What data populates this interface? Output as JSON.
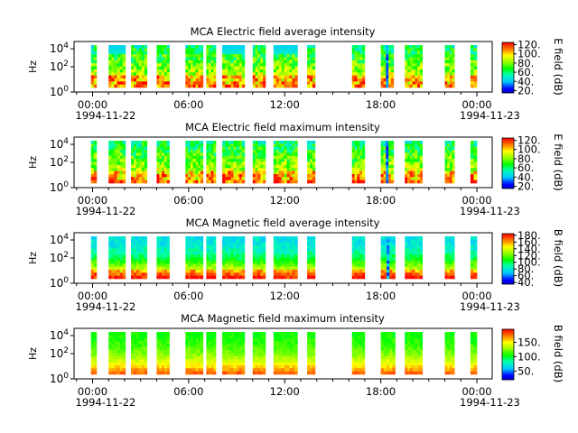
{
  "chart_data": [
    {
      "type": "heatmap",
      "title": "MCA  Electric field average intensity",
      "ylabel": "Hz",
      "yticks": [
        "10^0",
        "10^2",
        "10^4"
      ],
      "xticks": [
        "00:00",
        "06:00",
        "12:00",
        "18:00",
        "00:00"
      ],
      "date_start": "1994-11-22",
      "date_end": "1994-11-23",
      "colorbar_label": "E field (dB)",
      "colorbar_ticks": [
        "20.",
        "40.",
        "60.",
        "80.",
        "100.",
        "120."
      ],
      "colorbar_range": [
        15,
        125
      ],
      "style": "electric"
    },
    {
      "type": "heatmap",
      "title": "MCA  Electric field maximum intensity",
      "ylabel": "Hz",
      "yticks": [
        "10^0",
        "10^2",
        "10^4"
      ],
      "xticks": [
        "00:00",
        "06:00",
        "12:00",
        "18:00",
        "00:00"
      ],
      "date_start": "1994-11-22",
      "date_end": "1994-11-23",
      "colorbar_label": "E field (dB)",
      "colorbar_ticks": [
        "20.",
        "40.",
        "60.",
        "80.",
        "100.",
        "120."
      ],
      "colorbar_range": [
        15,
        125
      ],
      "style": "electric"
    },
    {
      "type": "heatmap",
      "title": "MCA  Magnetic field average intensity",
      "ylabel": "Hz",
      "yticks": [
        "10^0",
        "10^2",
        "10^4"
      ],
      "xticks": [
        "00:00",
        "06:00",
        "12:00",
        "18:00",
        "00:00"
      ],
      "date_start": "1994-11-22",
      "date_end": "1994-11-23",
      "colorbar_label": "B field (dB)",
      "colorbar_ticks": [
        "40.",
        "60.",
        "80.",
        "100.",
        "120.",
        "140.",
        "160.",
        "180."
      ],
      "colorbar_range": [
        35,
        185
      ],
      "style": "magnetic"
    },
    {
      "type": "heatmap",
      "title": "MCA  Magnetic field maximum intensity",
      "ylabel": "Hz",
      "yticks": [
        "10^0",
        "10^2",
        "10^4"
      ],
      "xticks": [
        "00:00",
        "06:00",
        "12:00",
        "18:00",
        "00:00"
      ],
      "date_start": "1994-11-22",
      "date_end": "1994-11-23",
      "colorbar_label": "B field (dB)",
      "colorbar_ticks": [
        "50.",
        "100.",
        "150."
      ],
      "colorbar_range": [
        20,
        195
      ],
      "style": "magnetic"
    }
  ],
  "data_segments_hours": [
    [
      -0.1,
      0.25
    ],
    [
      1.0,
      2.05
    ],
    [
      2.4,
      3.4
    ],
    [
      4.0,
      4.8
    ],
    [
      5.8,
      6.9
    ],
    [
      7.1,
      7.7
    ],
    [
      8.1,
      9.5
    ],
    [
      10.0,
      10.8
    ],
    [
      11.3,
      12.8
    ],
    [
      13.4,
      13.9
    ],
    [
      16.2,
      17.0
    ],
    [
      18.0,
      18.9
    ],
    [
      19.5,
      20.6
    ],
    [
      22.0,
      22.6
    ],
    [
      23.6,
      24.0
    ]
  ],
  "data_segments_hours_electric": [
    [
      -0.1,
      0.25
    ],
    [
      1.0,
      2.05
    ],
    [
      2.4,
      3.4
    ],
    [
      4.0,
      4.8
    ],
    [
      5.8,
      6.9
    ],
    [
      7.1,
      7.7
    ],
    [
      8.1,
      9.5
    ],
    [
      10.0,
      10.8
    ],
    [
      11.3,
      12.8
    ],
    [
      13.4,
      13.9
    ],
    [
      16.2,
      17.0
    ],
    [
      18.0,
      18.8
    ],
    [
      19.5,
      20.6
    ],
    [
      22.0,
      22.6
    ],
    [
      23.6,
      24.0
    ]
  ]
}
